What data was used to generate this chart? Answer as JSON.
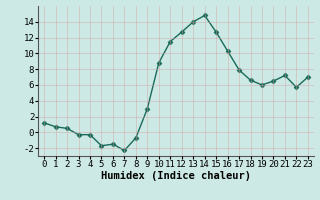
{
  "x": [
    0,
    1,
    2,
    3,
    4,
    5,
    6,
    7,
    8,
    9,
    10,
    11,
    12,
    13,
    14,
    15,
    16,
    17,
    18,
    19,
    20,
    21,
    22,
    23
  ],
  "y": [
    1.2,
    0.7,
    0.5,
    -0.3,
    -0.3,
    -1.7,
    -1.5,
    -2.3,
    -0.7,
    3.0,
    8.8,
    11.5,
    12.7,
    14.0,
    14.8,
    12.7,
    10.3,
    7.9,
    6.6,
    6.0,
    6.5,
    7.2,
    5.7,
    7.0
  ],
  "line_color": "#1a6b5a",
  "marker": "D",
  "marker_size": 2.5,
  "xlabel": "Humidex (Indice chaleur)",
  "xlim": [
    -0.5,
    23.5
  ],
  "ylim": [
    -3,
    16
  ],
  "yticks": [
    -2,
    0,
    2,
    4,
    6,
    8,
    10,
    12,
    14
  ],
  "xticks": [
    0,
    1,
    2,
    3,
    4,
    5,
    6,
    7,
    8,
    9,
    10,
    11,
    12,
    13,
    14,
    15,
    16,
    17,
    18,
    19,
    20,
    21,
    22,
    23
  ],
  "background_color": "#cce9e5",
  "grid_color": "#b8d9d5",
  "xlabel_fontsize": 7.5,
  "tick_fontsize": 6.5,
  "linewidth": 1.0
}
